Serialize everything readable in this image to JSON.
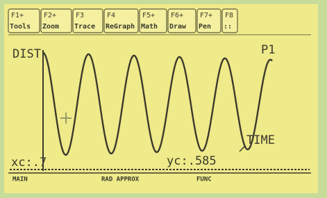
{
  "toolbar": {
    "tabs": [
      {
        "key": "F1+",
        "label": "Tools"
      },
      {
        "key": "F2+",
        "label": "Zoom"
      },
      {
        "key": "F3",
        "label": "Trace"
      },
      {
        "key": "F4",
        "label": "ReGraph"
      },
      {
        "key": "F5+",
        "label": "Math"
      },
      {
        "key": "F6+",
        "label": "Draw"
      },
      {
        "key": "F7+",
        "label": "Pen"
      },
      {
        "key": "F8",
        "label": "::"
      }
    ]
  },
  "graph": {
    "y_label": "DIST",
    "x_label": "TIME",
    "plot_name": "P1",
    "xc": "xc:.7",
    "yc": "yc:.585"
  },
  "status": {
    "mode": "MAIN",
    "angle": "RAD APPROX",
    "graph_mode": "FUNC"
  }
}
